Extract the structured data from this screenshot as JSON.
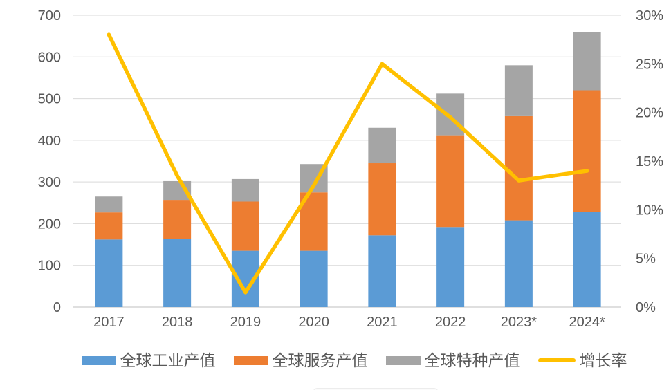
{
  "chart_data": {
    "type": "bar",
    "subtype": "stacked-bar-with-line",
    "title": "",
    "categories": [
      "2017",
      "2018",
      "2019",
      "2020",
      "2021",
      "2022",
      "2023*",
      "2024*"
    ],
    "series": [
      {
        "name": "全球工业产值",
        "type": "bar",
        "axis": "left",
        "color": "#5B9BD5",
        "values": [
          162,
          163,
          135,
          135,
          172,
          192,
          208,
          228
        ]
      },
      {
        "name": "全球服务产值",
        "type": "bar",
        "axis": "left",
        "color": "#ED7D31",
        "values": [
          65,
          94,
          118,
          140,
          173,
          220,
          250,
          292
        ]
      },
      {
        "name": "全球特种产值",
        "type": "bar",
        "axis": "left",
        "color": "#A5A5A5",
        "values": [
          38,
          45,
          54,
          68,
          85,
          100,
          122,
          140
        ]
      },
      {
        "name": "增长率",
        "type": "line",
        "axis": "right",
        "color": "#FFC000",
        "unit": "%",
        "values": [
          28,
          13.5,
          1.5,
          12.5,
          25,
          19.5,
          13,
          14
        ]
      }
    ],
    "stacked_totals": [
      265,
      302,
      307,
      343,
      430,
      512,
      580,
      660
    ],
    "left_axis": {
      "min": 0,
      "max": 700,
      "step": 100,
      "tick_labels": [
        "0",
        "100",
        "200",
        "300",
        "400",
        "500",
        "600",
        "700"
      ]
    },
    "right_axis": {
      "min": 0,
      "max": 30,
      "step": 5,
      "tick_labels": [
        "0%",
        "5%",
        "10%",
        "15%",
        "20%",
        "25%",
        "30%"
      ]
    },
    "grid": true,
    "legend_position": "bottom",
    "colors": {
      "gridline": "#D9D9D9",
      "axis_line": "#BFBFBF",
      "tick_text": "#595959",
      "background": "#FFFFFF"
    }
  },
  "legend": {
    "items": [
      {
        "label": "全球工业产值",
        "marker": "rect",
        "color": "#5B9BD5"
      },
      {
        "label": "全球服务产值",
        "marker": "rect",
        "color": "#ED7D31"
      },
      {
        "label": "全球特种产值",
        "marker": "rect",
        "color": "#A5A5A5"
      },
      {
        "label": "增长率",
        "marker": "line",
        "color": "#FFC000"
      }
    ]
  }
}
